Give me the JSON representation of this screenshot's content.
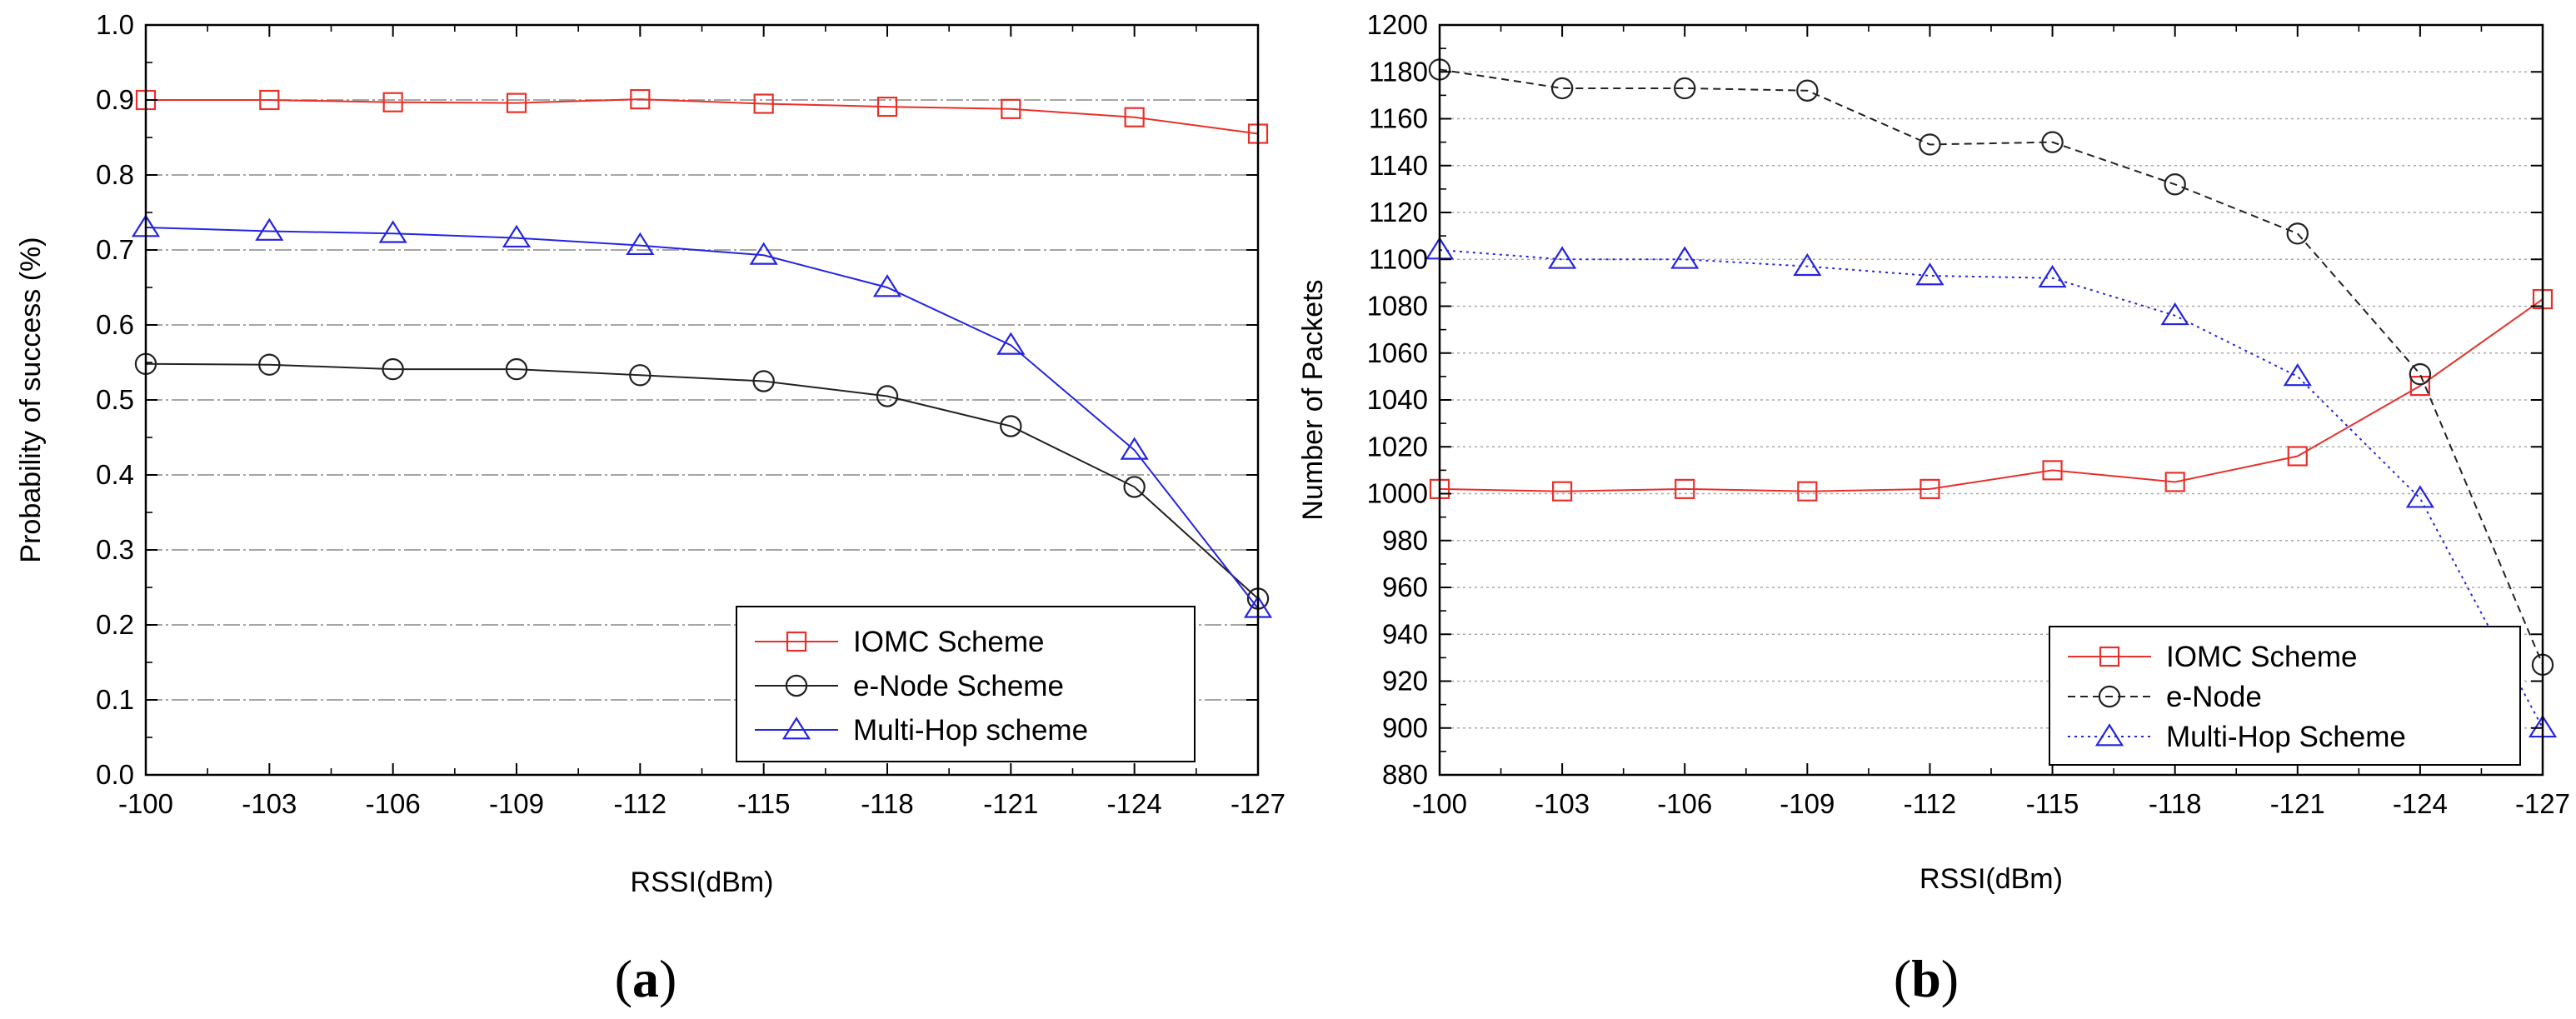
{
  "chart_data": [
    {
      "type": "line",
      "subfigure_label": "a",
      "xlabel": "RSSI(dBm)",
      "ylabel": "Probability of success (%)",
      "categories": [
        "-100",
        "-103",
        "-106",
        "-109",
        "-112",
        "-115",
        "-118",
        "-121",
        "-124",
        "-127"
      ],
      "ylim": [
        0.0,
        1.0
      ],
      "yticks": [
        "0.0",
        "0.1",
        "0.2",
        "0.3",
        "0.4",
        "0.5",
        "0.6",
        "0.7",
        "0.8",
        "0.9",
        "1.0"
      ],
      "grid": true,
      "legend_position": "bottom-right",
      "series": [
        {
          "name": "IOMC Scheme",
          "color": "#e8302a",
          "marker": "square",
          "dash": "solid",
          "values": [
            0.9,
            0.9,
            0.897,
            0.896,
            0.901,
            0.895,
            0.891,
            0.888,
            0.877,
            0.855
          ]
        },
        {
          "name": "e-Node Scheme",
          "color": "#222222",
          "marker": "circle",
          "dash": "solid",
          "values": [
            0.548,
            0.547,
            0.541,
            0.541,
            0.533,
            0.525,
            0.505,
            0.465,
            0.384,
            0.235
          ]
        },
        {
          "name": "Multi-Hop scheme",
          "color": "#2525e0",
          "marker": "triangle",
          "dash": "solid",
          "values": [
            0.73,
            0.725,
            0.722,
            0.716,
            0.706,
            0.693,
            0.65,
            0.573,
            0.433,
            0.222
          ]
        }
      ]
    },
    {
      "type": "line",
      "subfigure_label": "b",
      "xlabel": "RSSI(dBm)",
      "ylabel": "Number of Packets",
      "categories": [
        "-100",
        "-103",
        "-106",
        "-109",
        "-112",
        "-115",
        "-118",
        "-121",
        "-124",
        "-127"
      ],
      "ylim": [
        880,
        1200
      ],
      "yticks": [
        "880",
        "900",
        "920",
        "940",
        "960",
        "980",
        "1000",
        "1020",
        "1040",
        "1060",
        "1080",
        "1100",
        "1120",
        "1140",
        "1160",
        "1180",
        "1200"
      ],
      "grid": true,
      "legend_position": "bottom-right",
      "series": [
        {
          "name": "IOMC Scheme",
          "color": "#e8302a",
          "marker": "square",
          "dash": "solid",
          "values": [
            1002,
            1001,
            1002,
            1001,
            1002,
            1010,
            1005,
            1016,
            1046,
            1083
          ]
        },
        {
          "name": "e-Node",
          "color": "#222222",
          "marker": "circle",
          "dash": "dashed",
          "values": [
            1181,
            1173,
            1173,
            1172,
            1149,
            1150,
            1132,
            1111,
            1051,
            927
          ]
        },
        {
          "name": "Multi-Hop Scheme",
          "color": "#2525e0",
          "marker": "triangle",
          "dash": "dotted",
          "values": [
            1104,
            1100,
            1100,
            1097,
            1093,
            1092,
            1076,
            1050,
            998,
            900
          ]
        }
      ]
    }
  ]
}
